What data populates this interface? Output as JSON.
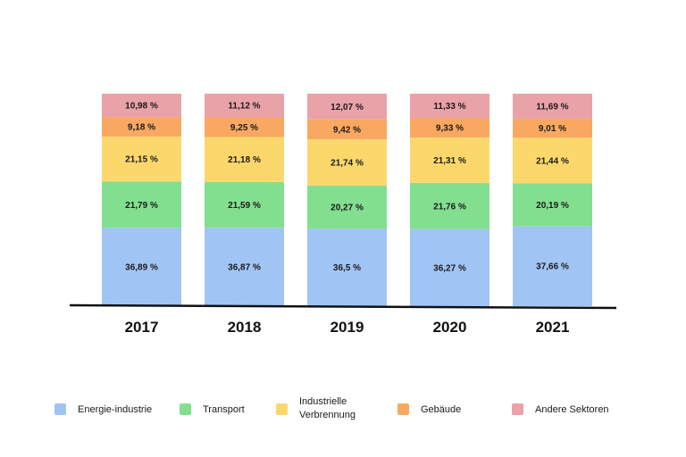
{
  "chart_data": {
    "type": "bar",
    "stacked": true,
    "categories": [
      "2017",
      "2018",
      "2019",
      "2020",
      "2021"
    ],
    "series": [
      {
        "name": "Energie-industrie",
        "color": "#a0c4f4",
        "values": [
          36.89,
          36.87,
          36.5,
          36.27,
          37.66
        ],
        "labels": [
          "36,89 %",
          "36,87 %",
          "36,5 %",
          "36,27 %",
          "37,66 %"
        ]
      },
      {
        "name": "Transport",
        "color": "#83df90",
        "values": [
          21.79,
          21.59,
          20.27,
          21.76,
          20.19
        ],
        "labels": [
          "21,79 %",
          "21,59 %",
          "20,27 %",
          "21,76 %",
          "20,19 %"
        ]
      },
      {
        "name": "Industrielle Verbrennung",
        "legend_lines": [
          "Industrielle",
          "Verbrennung"
        ],
        "color": "#fcd86c",
        "values": [
          21.15,
          21.18,
          21.74,
          21.31,
          21.44
        ],
        "labels": [
          "21,15 %",
          "21,18 %",
          "21,74 %",
          "21,31 %",
          "21,44 %"
        ]
      },
      {
        "name": "Gebäude",
        "color": "#f9a862",
        "values": [
          9.18,
          9.25,
          9.42,
          9.33,
          9.01
        ],
        "labels": [
          "9,18 %",
          "9,25 %",
          "9,42 %",
          "9,33 %",
          "9,01 %"
        ]
      },
      {
        "name": "Andere Sektoren",
        "color": "#e9a2a8",
        "values": [
          10.98,
          11.12,
          12.07,
          11.33,
          11.69
        ],
        "labels": [
          "10,98 %",
          "11,12 %",
          "12,07 %",
          "11,33 %",
          "11,69 %"
        ]
      }
    ],
    "ylim": [
      0,
      100
    ],
    "grid": false,
    "legend_position": "bottom",
    "title": "",
    "xlabel": "",
    "ylabel": ""
  }
}
